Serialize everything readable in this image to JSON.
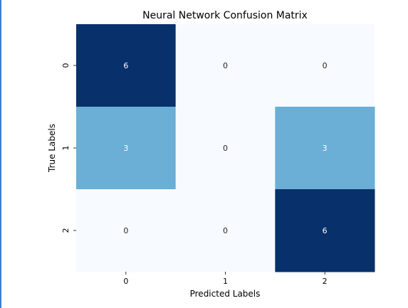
{
  "chart_data": {
    "type": "heatmap",
    "title": "Neural Network Confusion Matrix",
    "xlabel": "Predicted Labels",
    "ylabel": "True Labels",
    "x_categories": [
      "0",
      "1",
      "2"
    ],
    "y_categories": [
      "0",
      "1",
      "2"
    ],
    "values": [
      [
        6,
        0,
        0
      ],
      [
        3,
        0,
        3
      ],
      [
        0,
        0,
        6
      ]
    ],
    "value_range": [
      0,
      6
    ],
    "colormap": "Blues",
    "colors": {
      "low": "#f7fbff",
      "mid": "#6baed6",
      "high": "#08306b",
      "text_dark": "#262626",
      "text_light": "#ffffff"
    },
    "colorbar": false,
    "grid": false
  }
}
